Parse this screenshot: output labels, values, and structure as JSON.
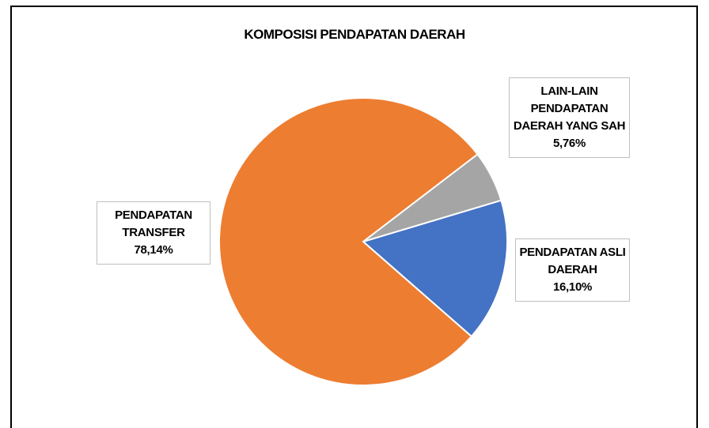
{
  "chart_data": {
    "type": "pie",
    "title": "KOMPOSISI PENDAPATAN DAERAH",
    "categories": [
      "PENDAPATAN ASLI DAERAH",
      "PENDAPATAN TRANSFER",
      "LAIN-LAIN PENDAPATAN DAERAH YANG SAH"
    ],
    "values": [
      16.1,
      78.14,
      5.76
    ],
    "value_labels": [
      "16,10%",
      "78,14%",
      "5,76%"
    ],
    "colors": [
      "#4472c4",
      "#ed7d31",
      "#a5a5a5"
    ]
  }
}
